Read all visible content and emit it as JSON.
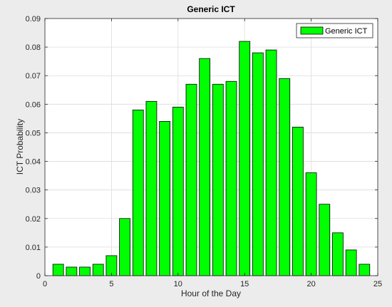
{
  "chart_data": {
    "type": "bar",
    "title": "Generic ICT",
    "xlabel": "Hour of the Day",
    "ylabel": "ICT Probability",
    "xlim": [
      0,
      25
    ],
    "ylim": [
      0,
      0.09
    ],
    "xticks": [
      0,
      5,
      10,
      15,
      20,
      25
    ],
    "yticks": [
      0,
      0.01,
      0.02,
      0.03,
      0.04,
      0.05,
      0.06,
      0.07,
      0.08,
      0.09
    ],
    "xtick_labels": [
      "0",
      "5",
      "10",
      "15",
      "20",
      "25"
    ],
    "ytick_labels": [
      "0",
      "0.01",
      "0.02",
      "0.03",
      "0.04",
      "0.05",
      "0.06",
      "0.07",
      "0.08",
      "0.09"
    ],
    "grid": true,
    "legend_position": "top-right",
    "bar_color": "#00ff00",
    "series": [
      {
        "name": "Generic ICT",
        "x": [
          1,
          2,
          3,
          4,
          5,
          6,
          7,
          8,
          9,
          10,
          11,
          12,
          13,
          14,
          15,
          16,
          17,
          18,
          19,
          20,
          21,
          22,
          23,
          24
        ],
        "values": [
          0.004,
          0.003,
          0.003,
          0.004,
          0.007,
          0.02,
          0.058,
          0.061,
          0.054,
          0.059,
          0.067,
          0.076,
          0.067,
          0.068,
          0.082,
          0.078,
          0.079,
          0.069,
          0.052,
          0.036,
          0.025,
          0.015,
          0.009,
          0.004
        ]
      }
    ]
  }
}
